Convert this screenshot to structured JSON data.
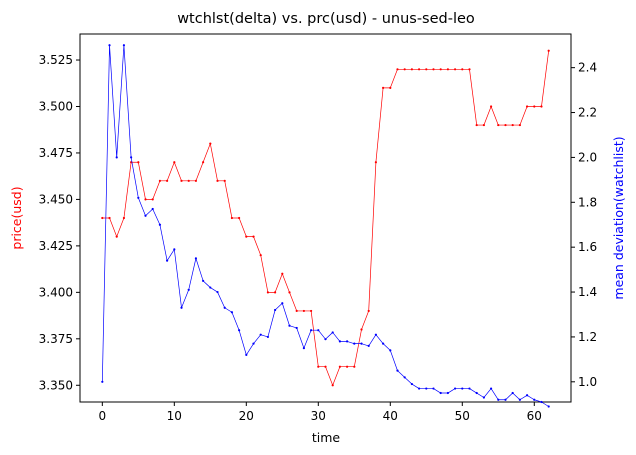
{
  "chart_data": {
    "type": "line",
    "title": "wtchlst(delta) vs. prc(usd) - unus-sed-leo",
    "xlabel": "time",
    "ylabel_left": "price(usd)",
    "ylabel_right": "mean deviation(watchlist)",
    "xlim": [
      -3.1,
      65.1
    ],
    "ylim_left": [
      3.341,
      3.539
    ],
    "ylim_right": [
      0.91,
      2.55
    ],
    "x_ticks": [
      0,
      10,
      20,
      30,
      40,
      50,
      60
    ],
    "y_left_ticks": [
      "3.350",
      "3.375",
      "3.400",
      "3.425",
      "3.450",
      "3.475",
      "3.500",
      "3.525"
    ],
    "y_right_ticks": [
      "1.0",
      "1.2",
      "1.4",
      "1.6",
      "1.8",
      "2.0",
      "2.2",
      "2.4"
    ],
    "colors": {
      "price": "#ff0000",
      "watchlist": "#0000ff"
    },
    "series": [
      {
        "name": "price(usd)",
        "axis": "left",
        "color": "#ff0000",
        "x": [
          0,
          1,
          2,
          3,
          4,
          5,
          6,
          7,
          8,
          9,
          10,
          11,
          12,
          13,
          14,
          15,
          16,
          17,
          18,
          19,
          20,
          21,
          22,
          23,
          24,
          25,
          26,
          27,
          28,
          29,
          30,
          31,
          32,
          33,
          34,
          35,
          36,
          37,
          38,
          39,
          40,
          41,
          42,
          43,
          44,
          45,
          46,
          47,
          48,
          49,
          50,
          51,
          52,
          53,
          54,
          55,
          56,
          57,
          58,
          59,
          60,
          61,
          62
        ],
        "values": [
          3.44,
          3.44,
          3.43,
          3.44,
          3.47,
          3.47,
          3.45,
          3.45,
          3.46,
          3.46,
          3.47,
          3.46,
          3.46,
          3.46,
          3.47,
          3.48,
          3.46,
          3.46,
          3.44,
          3.44,
          3.43,
          3.43,
          3.42,
          3.4,
          3.4,
          3.41,
          3.4,
          3.39,
          3.39,
          3.39,
          3.36,
          3.36,
          3.35,
          3.36,
          3.36,
          3.36,
          3.38,
          3.39,
          3.47,
          3.51,
          3.51,
          3.52,
          3.52,
          3.52,
          3.52,
          3.52,
          3.52,
          3.52,
          3.52,
          3.52,
          3.52,
          3.52,
          3.49,
          3.49,
          3.5,
          3.49,
          3.49,
          3.49,
          3.49,
          3.5,
          3.5,
          3.5,
          3.53
        ]
      },
      {
        "name": "mean deviation(watchlist)",
        "axis": "right",
        "color": "#0000ff",
        "x": [
          0,
          1,
          2,
          3,
          4,
          5,
          6,
          7,
          8,
          9,
          10,
          11,
          12,
          13,
          14,
          15,
          16,
          17,
          18,
          19,
          20,
          21,
          22,
          23,
          24,
          25,
          26,
          27,
          28,
          29,
          30,
          31,
          32,
          33,
          34,
          35,
          36,
          37,
          38,
          39,
          40,
          41,
          42,
          43,
          44,
          45,
          46,
          47,
          48,
          49,
          50,
          51,
          52,
          53,
          54,
          55,
          56,
          57,
          58,
          59,
          60,
          61,
          62
        ],
        "values": [
          1.0,
          2.5,
          2.0,
          2.5,
          2.0,
          1.82,
          1.74,
          1.77,
          1.7,
          1.54,
          1.59,
          1.33,
          1.41,
          1.55,
          1.45,
          1.42,
          1.4,
          1.33,
          1.31,
          1.23,
          1.12,
          1.17,
          1.21,
          1.2,
          1.32,
          1.35,
          1.25,
          1.24,
          1.15,
          1.23,
          1.23,
          1.19,
          1.22,
          1.18,
          1.18,
          1.17,
          1.17,
          1.16,
          1.21,
          1.17,
          1.14,
          1.05,
          1.02,
          0.99,
          0.97,
          0.97,
          0.97,
          0.95,
          0.95,
          0.97,
          0.97,
          0.97,
          0.95,
          0.93,
          0.97,
          0.92,
          0.92,
          0.95,
          0.92,
          0.94,
          0.92,
          0.91,
          0.89
        ]
      }
    ]
  }
}
